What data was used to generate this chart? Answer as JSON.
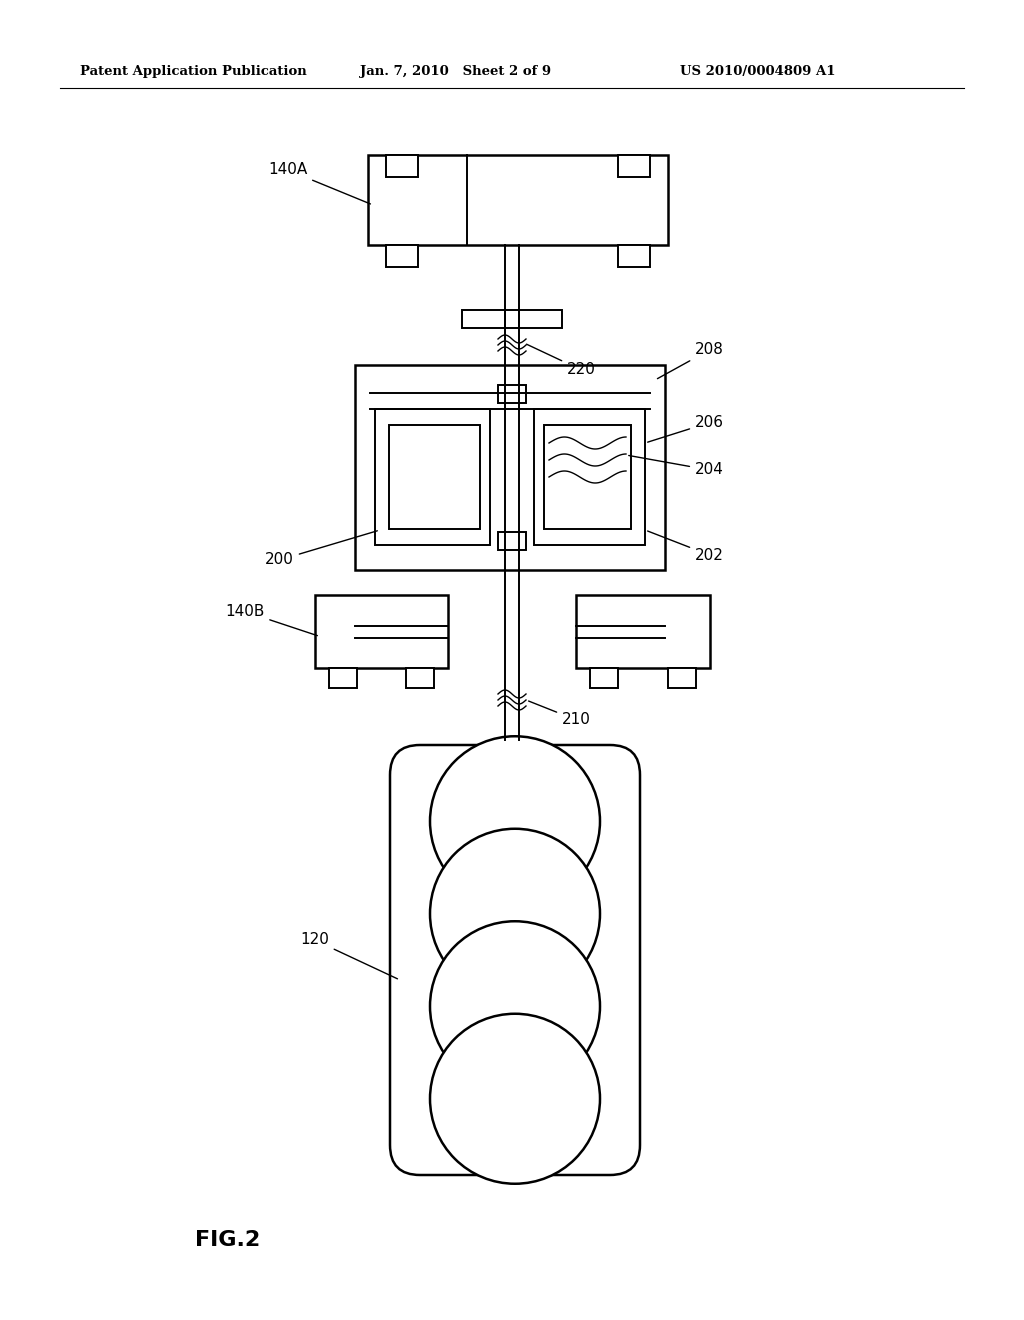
{
  "bg_color": "#ffffff",
  "header_left": "Patent Application Publication",
  "header_mid": "Jan. 7, 2010   Sheet 2 of 9",
  "header_right": "US 2010/0004809 A1",
  "fig_label": "FIG.2",
  "lw_main": 1.8,
  "lw_inner": 1.4
}
